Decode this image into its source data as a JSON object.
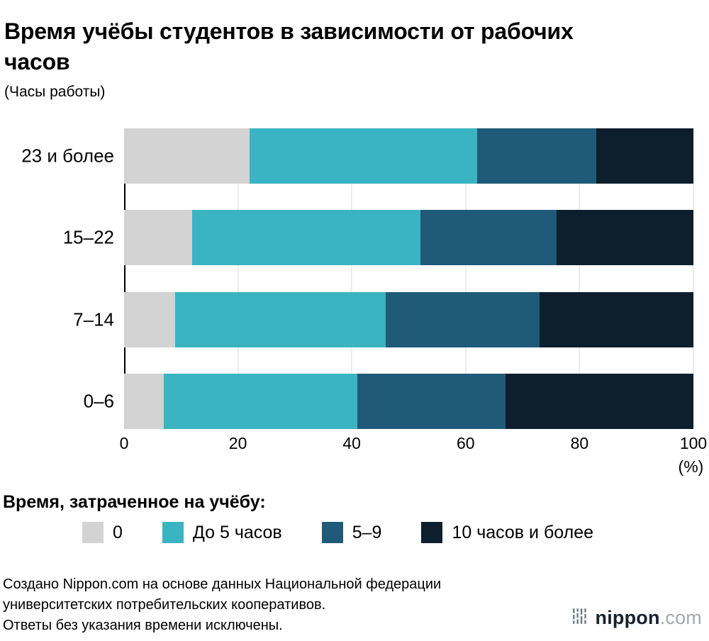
{
  "title": "Время учёбы студентов в зависимости от рабочих часов",
  "units_label": "(Часы работы)",
  "chart_data": {
    "type": "bar",
    "orientation": "horizontal",
    "stacked": true,
    "categories": [
      "23 и более",
      "15–22",
      "7–14",
      "0–6"
    ],
    "series": [
      {
        "name": "0",
        "color": "#d3d3d3",
        "values": [
          22,
          12,
          9,
          7
        ]
      },
      {
        "name": "До 5 часов",
        "color": "#3ab4c2",
        "values": [
          40,
          40,
          37,
          34
        ]
      },
      {
        "name": "5–9",
        "color": "#1f5a79",
        "values": [
          21,
          24,
          27,
          26
        ]
      },
      {
        "name": "10 часов и более",
        "color": "#0d1f2d",
        "values": [
          17,
          24,
          27,
          33
        ]
      }
    ],
    "xlim": [
      0,
      100
    ],
    "x_ticks": [
      0,
      20,
      40,
      60,
      80,
      100
    ],
    "x_unit_label": "(%)",
    "grid": true,
    "legend_position": "bottom"
  },
  "legend": {
    "title": "Время, затраченное на учёбу:"
  },
  "footer": {
    "lines": [
      "Создано Nippon.com на основе данных Национальной федерации",
      "университетских потребительских кооперативов.",
      "Ответы без указания времени исключены."
    ]
  },
  "logo": {
    "name": "nippon",
    "suffix": ".com"
  }
}
